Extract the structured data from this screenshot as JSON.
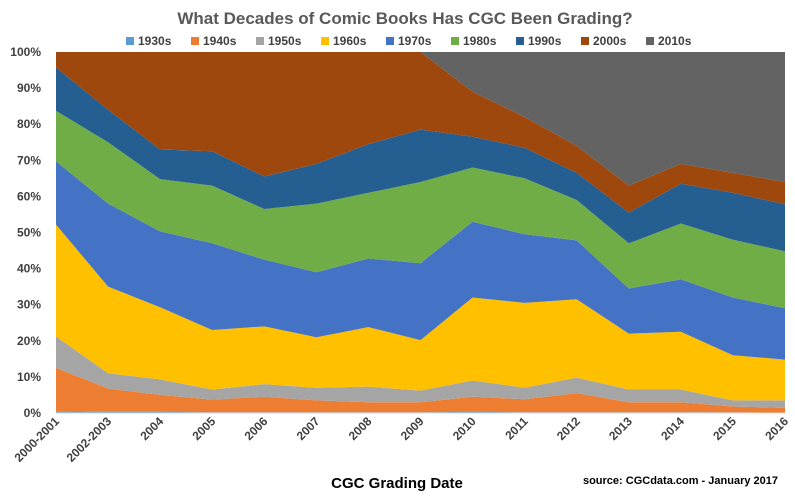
{
  "chart_data": {
    "type": "area",
    "stacked": true,
    "normalized": true,
    "title": "What Decades of Comic Books Has CGC Been Grading?",
    "xlabel": "CGC Grading Date",
    "ylabel": "",
    "source": "source: CGCdata.com - January 2017",
    "legend_position": "top",
    "grid": false,
    "ylim": [
      0,
      100
    ],
    "yticks": [
      "0%",
      "10%",
      "20%",
      "30%",
      "40%",
      "50%",
      "60%",
      "70%",
      "80%",
      "90%",
      "100%"
    ],
    "categories": [
      "2000-2001",
      "2002-2003",
      "2004",
      "2005",
      "2006",
      "2007",
      "2008",
      "2009",
      "2010",
      "2011",
      "2012",
      "2013",
      "2014",
      "2015",
      "2016"
    ],
    "series": [
      {
        "name": "1930s",
        "color": "#5B9BD5",
        "values": [
          0.5,
          0.3,
          0.3,
          0.2,
          0.2,
          0.2,
          0.2,
          0.2,
          0.3,
          0.2,
          0.2,
          0.2,
          0.2,
          0.2,
          0.1
        ]
      },
      {
        "name": "1940s",
        "color": "#ED7D31",
        "values": [
          12,
          6.5,
          4.7,
          3.5,
          4.3,
          3.3,
          2.8,
          2.8,
          4.2,
          3.6,
          5.3,
          2.8,
          2.8,
          1.6,
          1.3
        ]
      },
      {
        "name": "1950s",
        "color": "#A5A5A5",
        "values": [
          8.7,
          4.2,
          4.3,
          2.8,
          3.5,
          3.5,
          4.3,
          3.2,
          4.5,
          3.2,
          4.3,
          3.5,
          3.5,
          1.7,
          2.1
        ]
      },
      {
        "name": "1960s",
        "color": "#FFC000",
        "values": [
          31,
          24,
          20,
          16.5,
          16,
          14,
          16.5,
          14,
          23,
          23.5,
          21.7,
          15.5,
          16,
          12.5,
          11.3
        ]
      },
      {
        "name": "1970s",
        "color": "#4472C4",
        "values": [
          17.5,
          23,
          21,
          24,
          18.5,
          18,
          19,
          21.3,
          21,
          19,
          16.3,
          12.5,
          14.5,
          16,
          14.2
        ]
      },
      {
        "name": "1980s",
        "color": "#70AD47",
        "values": [
          14,
          17,
          14.5,
          16,
          14,
          19,
          18.2,
          22.5,
          15,
          15.5,
          11.2,
          12.5,
          15.5,
          16,
          15.8
        ]
      },
      {
        "name": "1990s",
        "color": "#255E91",
        "values": [
          12,
          9,
          8.2,
          9.5,
          9,
          11,
          13.5,
          14.5,
          8.5,
          8.5,
          7.5,
          8.5,
          11,
          13,
          13
        ]
      },
      {
        "name": "2000s",
        "color": "#9E480E",
        "values": [
          4.3,
          16,
          27,
          27.5,
          34.5,
          31,
          25.5,
          21.5,
          12.5,
          8.5,
          7.5,
          7.5,
          5.5,
          5.5,
          6.2
        ]
      },
      {
        "name": "2010s",
        "color": "#636363",
        "values": [
          0,
          0,
          0,
          0,
          0,
          0,
          0,
          0,
          11,
          18,
          26,
          37,
          31,
          33.5,
          36
        ]
      }
    ]
  }
}
